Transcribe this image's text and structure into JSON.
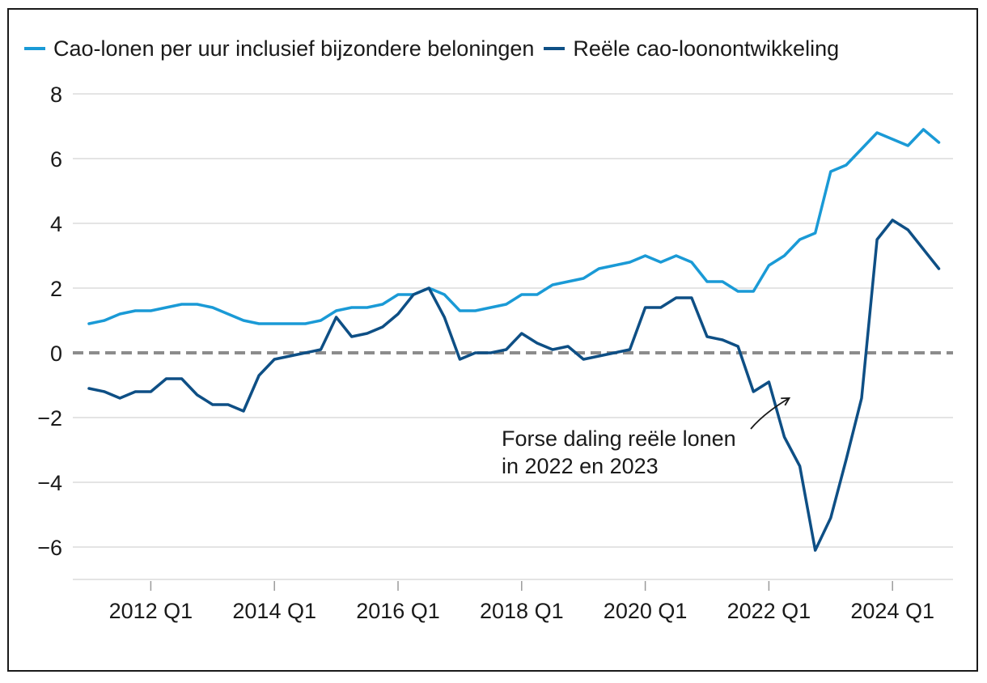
{
  "chart_data": {
    "type": "line",
    "title": "",
    "xlabel": "",
    "ylabel": "",
    "ylim": [
      -7,
      8
    ],
    "yticks": [
      8,
      6,
      4,
      2,
      0,
      -2,
      -4,
      -6
    ],
    "ytick_labels": [
      "8",
      "6",
      "4",
      "2",
      "0",
      "−2",
      "−4",
      "−6"
    ],
    "x_start": "2011 Q1",
    "xtick_labels": [
      {
        "label": "2012 Q1",
        "index": 4
      },
      {
        "label": "2014 Q1",
        "index": 12
      },
      {
        "label": "2016 Q1",
        "index": 20
      },
      {
        "label": "2018 Q1",
        "index": 28
      },
      {
        "label": "2020 Q1",
        "index": 36
      },
      {
        "label": "2022 Q1",
        "index": 44
      },
      {
        "label": "2024 Q1",
        "index": 52
      }
    ],
    "legend_position": "top-left",
    "series": [
      {
        "name": "Cao-lonen per uur inclusief bijzondere beloningen",
        "color": "#1a9ad6",
        "values": [
          0.9,
          1.0,
          1.2,
          1.3,
          1.3,
          1.4,
          1.5,
          1.5,
          1.4,
          1.2,
          1.0,
          0.9,
          0.9,
          0.9,
          0.9,
          1.0,
          1.3,
          1.4,
          1.4,
          1.5,
          1.8,
          1.8,
          2.0,
          1.8,
          1.3,
          1.3,
          1.4,
          1.5,
          1.8,
          1.8,
          2.1,
          2.2,
          2.3,
          2.6,
          2.7,
          2.8,
          3.0,
          2.8,
          3.0,
          2.8,
          2.2,
          2.2,
          1.9,
          1.9,
          2.7,
          3.0,
          3.5,
          3.7,
          5.6,
          5.8,
          6.3,
          6.8,
          6.6,
          6.4,
          6.9,
          6.5
        ]
      },
      {
        "name": "Reële cao-loonontwikkeling",
        "color": "#0e4f85",
        "values": [
          -1.1,
          -1.2,
          -1.4,
          -1.2,
          -1.2,
          -0.8,
          -0.8,
          -1.3,
          -1.6,
          -1.6,
          -1.8,
          -0.7,
          -0.2,
          -0.1,
          0.0,
          0.1,
          1.1,
          0.5,
          0.6,
          0.8,
          1.2,
          1.8,
          2.0,
          1.1,
          -0.2,
          0.0,
          0.0,
          0.1,
          0.6,
          0.3,
          0.1,
          0.2,
          -0.2,
          -0.1,
          0.0,
          0.1,
          1.4,
          1.4,
          1.7,
          1.7,
          0.5,
          0.4,
          0.2,
          -1.2,
          -0.9,
          -2.6,
          -3.5,
          -6.1,
          -5.1,
          -3.3,
          -1.4,
          3.5,
          4.1,
          3.8,
          3.2,
          2.6
        ]
      }
    ],
    "zero_line": {
      "value": 0,
      "color": "#8c8c8c",
      "style": "dashed"
    },
    "annotation": {
      "lines": [
        "Forse daling reële lonen",
        "in 2022 en 2023"
      ],
      "arrow_target": {
        "index": 45,
        "value": -1.4
      }
    }
  },
  "colors": {
    "grid": "#c8c8c8",
    "axis_text": "#1a1a1a",
    "frame": "#1a1a1a"
  }
}
